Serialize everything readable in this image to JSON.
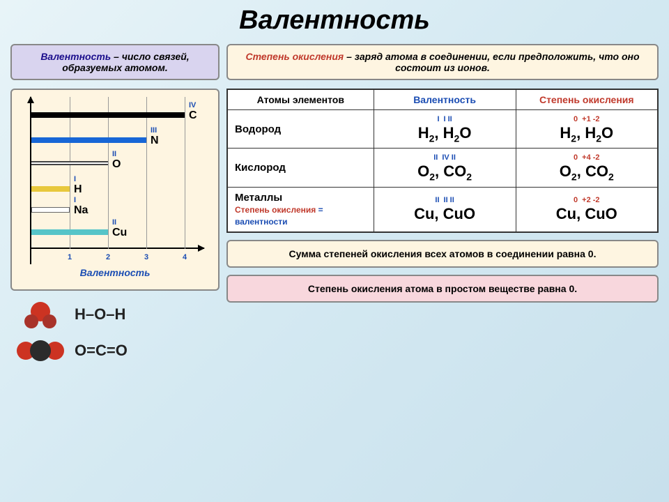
{
  "title": "Валентность",
  "left": {
    "definition_prefix": "Валентность",
    "definition_rest": " – число связей, образуемых атомом.",
    "chart": {
      "elements": [
        {
          "symbol": "C",
          "valency": "IV",
          "bars": 4,
          "y": 22,
          "color": "#000000"
        },
        {
          "symbol": "N",
          "valency": "III",
          "bars": 3,
          "y": 58,
          "color": "#1766d6"
        },
        {
          "symbol": "O",
          "valency": "II",
          "bars": 2,
          "y": 92,
          "color": "#cc2222",
          "invert": true
        },
        {
          "symbol": "H",
          "valency": "I",
          "bars": 1,
          "y": 128,
          "color": "#e8c83d"
        },
        {
          "symbol": "Na",
          "valency": "I",
          "bars": 1,
          "y": 158,
          "color": "#ffffff",
          "border": true
        },
        {
          "symbol": "Cu",
          "valency": "II",
          "bars": 2,
          "y": 190,
          "color": "#56c4c8"
        }
      ],
      "xticks": [
        "1",
        "2",
        "3",
        "4"
      ],
      "xlabel": "Валентность"
    },
    "mol1": "H–O–H",
    "mol2": "O=C=O"
  },
  "right": {
    "definition_prefix": "Степень окисления",
    "definition_rest": " – заряд атома в соединении, если предположить, что оно состоит из ионов.",
    "table": {
      "headers": [
        "Атомы элементов",
        "Валентность",
        "Степень окисления"
      ],
      "rows": [
        {
          "head": "Водород",
          "val_sup": [
            "I",
            "",
            "I",
            "II"
          ],
          "val_f": "H<sub>2</sub>, H<sub>2</sub>O",
          "ox_sup": [
            "0",
            "",
            "+1",
            "-2"
          ],
          "ox_f": "H<sub>2</sub>, H<sub>2</sub>O"
        },
        {
          "head": "Кислород",
          "val_sup": [
            "II",
            "",
            "IV",
            "II"
          ],
          "val_f": "O<sub>2</sub>, CO<sub>2</sub>",
          "ox_sup": [
            "0",
            "",
            "+4",
            "-2"
          ],
          "ox_f": "O<sub>2</sub>, CO<sub>2</sub>"
        },
        {
          "head": "Металлы",
          "sub1": "Степень окисления",
          "sub2": " = валентности",
          "val_sup": [
            "II",
            "",
            "II",
            "II"
          ],
          "val_f": "Cu, CuO",
          "ox_sup": [
            "0",
            "",
            "+2",
            "-2"
          ],
          "ox_f": "Cu, CuO"
        }
      ]
    },
    "note1": "Сумма степеней окисления всех атомов в соединении равна 0.",
    "note2": "Степень окисления атома в простом веществе равна 0."
  }
}
